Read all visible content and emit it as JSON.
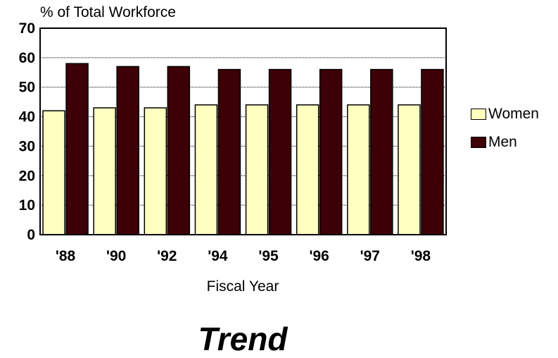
{
  "chart_data": {
    "type": "bar",
    "title": "Trend",
    "ylabel": "% of Total Workforce",
    "xlabel": "Fiscal Year",
    "categories": [
      "'88",
      "'90",
      "'92",
      "'94",
      "'95",
      "'96",
      "'97",
      "'98"
    ],
    "series": [
      {
        "name": "Women",
        "color": "#ffffc0",
        "values": [
          42,
          43,
          43,
          44,
          44,
          44,
          44,
          44
        ]
      },
      {
        "name": "Men",
        "color": "#3d0006",
        "values": [
          58,
          57,
          57,
          56,
          56,
          56,
          56,
          56
        ]
      }
    ],
    "ylim": [
      0,
      70
    ],
    "yticks": [
      0,
      10,
      20,
      30,
      40,
      50,
      60,
      70
    ],
    "grid": true,
    "legend_position": "right"
  }
}
